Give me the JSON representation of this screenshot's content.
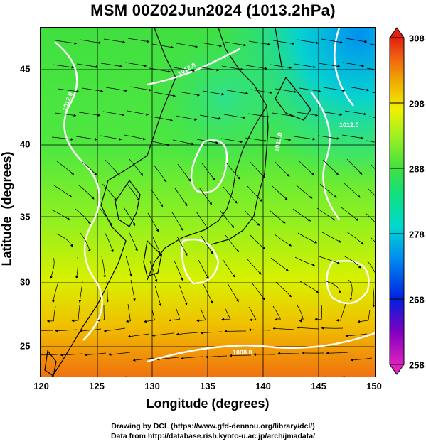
{
  "title": "MSM 00Z02Jun2024 (1013.2hPa)",
  "x_axis": {
    "label": "Longitude (degrees)",
    "ticks": [
      "120",
      "125",
      "130",
      "135",
      "140",
      "145",
      "150"
    ]
  },
  "y_axis": {
    "label": "Latitude  (degrees)",
    "ticks": [
      "25",
      "30",
      "35",
      "40",
      "45"
    ]
  },
  "colorbar": {
    "ticks": [
      "258",
      "268",
      "278",
      "288",
      "298",
      "308"
    ],
    "min": 258,
    "max": 308,
    "colors": [
      "#e020c0",
      "#8000c0",
      "#0020e0",
      "#0090f0",
      "#00d8d0",
      "#10e080",
      "#40e040",
      "#a0f020",
      "#f0f000",
      "#f0b000",
      "#f06010",
      "#e02010"
    ]
  },
  "contours": {
    "labels": [
      "1012.0",
      "1012.0",
      "1012.0",
      "1012.0",
      "1008.0"
    ]
  },
  "credits": {
    "line1": "Drawing by DCL (https://www.gfd-dennou.org/library/dcl/)",
    "line2": "Data from http://database.rish.kyoto-u.ac.jp/arch/jmadata/"
  }
}
